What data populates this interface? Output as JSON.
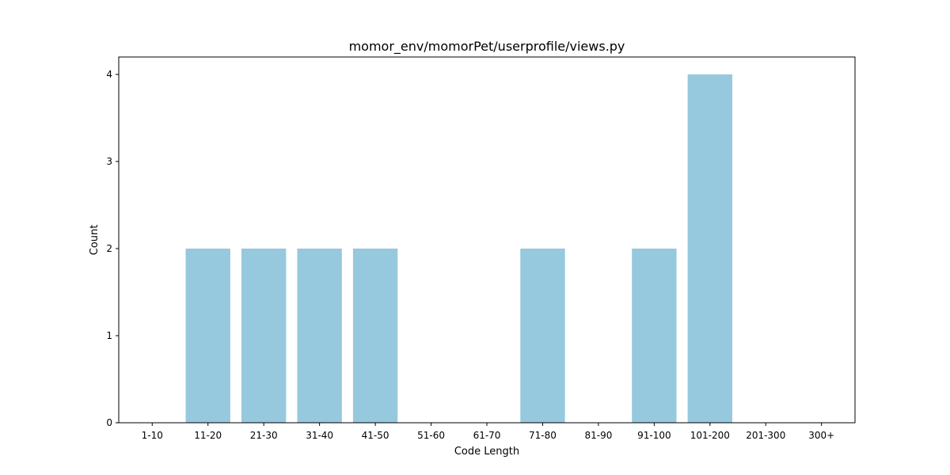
{
  "chart_data": {
    "type": "bar",
    "title": "momor_env/momorPet/userprofile/views.py",
    "xlabel": "Code Length",
    "ylabel": "Count",
    "categories": [
      "1-10",
      "11-20",
      "21-30",
      "31-40",
      "41-50",
      "51-60",
      "61-70",
      "71-80",
      "81-90",
      "91-100",
      "101-200",
      "201-300",
      "300+"
    ],
    "values": [
      0,
      2,
      2,
      2,
      2,
      0,
      0,
      2,
      0,
      2,
      4,
      0,
      0
    ],
    "ylim": [
      0,
      4.2
    ],
    "yticks": [
      0,
      1,
      2,
      3,
      4
    ],
    "bar_color": "#96c9dd",
    "grid": false
  }
}
